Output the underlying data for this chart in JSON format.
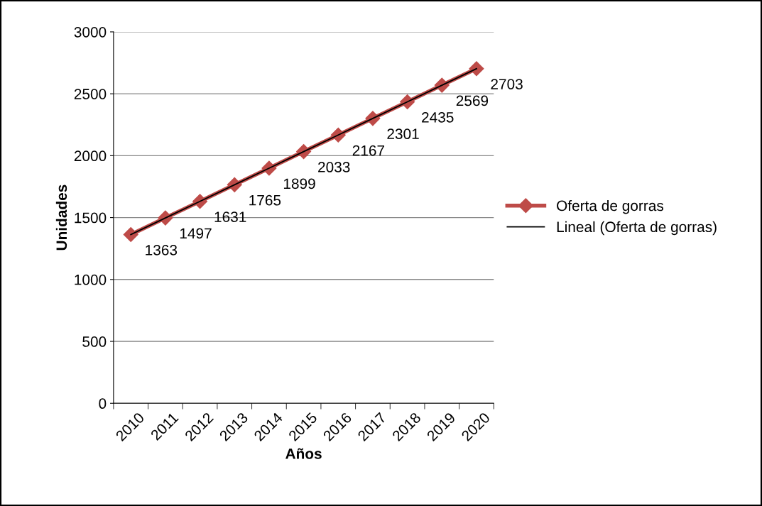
{
  "chart_data": {
    "type": "line",
    "xlabel": "Años",
    "ylabel": "Unidades",
    "categories": [
      "2010",
      "2011",
      "2012",
      "2013",
      "2014",
      "2015",
      "2016",
      "2017",
      "2018",
      "2019",
      "2020"
    ],
    "series": [
      {
        "name": "Oferta de gorras",
        "color": "#be4b48",
        "values": [
          1363,
          1497,
          1631,
          1765,
          1899,
          2033,
          2167,
          2301,
          2435,
          2569,
          2703
        ],
        "marker": "diamond",
        "data_labels": true
      },
      {
        "name": "Lineal (Oferta de gorras)",
        "color": "#000000",
        "values": [
          1363,
          1497,
          1631,
          1765,
          1899,
          2033,
          2167,
          2301,
          2435,
          2569,
          2703
        ],
        "marker": "none"
      }
    ],
    "ylim": [
      0,
      3000
    ],
    "yticks": [
      0,
      500,
      1000,
      1500,
      2000,
      2500,
      3000
    ],
    "grid": "y",
    "legend": "right",
    "line_style": "solid"
  }
}
